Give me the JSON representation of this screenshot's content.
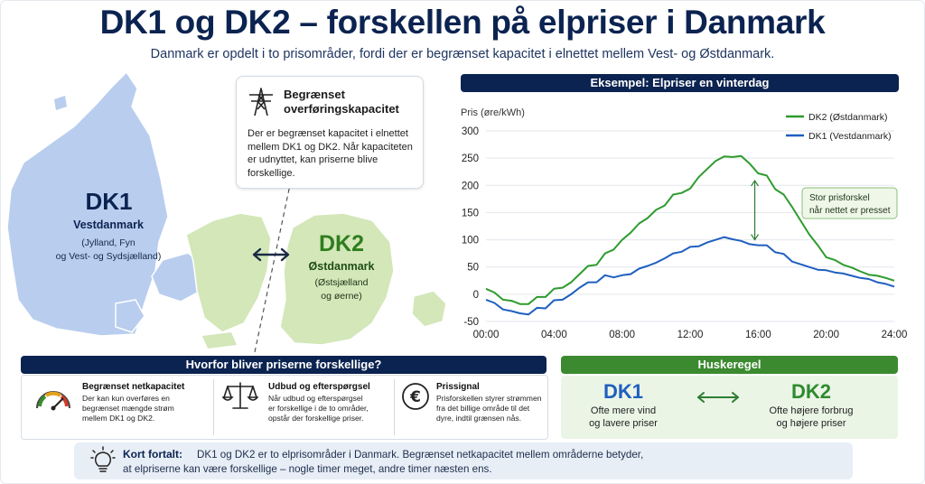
{
  "header": {
    "title": "DK1 og DK2 – forskellen på elpriser i Danmark",
    "subtitle": "Danmark er opdelt i to prisområder, fordi der er begrænset kapacitet i elnettet mellem Vest- og Østdanmark."
  },
  "callout": {
    "title": "Begrænset overføringskapacitet",
    "text": "Der er begrænset kapacitet i elnettet mellem DK1 og DK2. Når kapaciteten er udnyttet, kan priserne blive forskellige.",
    "icon": "power-pylon-icon"
  },
  "map": {
    "dk1": {
      "name": "DK1",
      "region": "Vestdanmark",
      "desc_line1": "(Jylland, Fyn",
      "desc_line2": "og Vest- og Sydsjælland)",
      "color": "#b9cdee"
    },
    "dk2": {
      "name": "DK2",
      "region": "Østdanmark",
      "desc_line1": "(Østsjælland",
      "desc_line2": "og øerne)",
      "color": "#d3e7b9"
    }
  },
  "chart_header": "Eksempel: Elpriser en vinterdag",
  "chart_data": {
    "type": "line",
    "ylabel": "Pris (øre/kWh)",
    "ylim": [
      -50,
      300
    ],
    "yticks": [
      300,
      250,
      200,
      150,
      100,
      50,
      0,
      -50
    ],
    "xticks": [
      "00:00",
      "04:00",
      "08:00",
      "12:00",
      "16:00",
      "20:00",
      "24:00"
    ],
    "x": [
      0,
      0.5,
      1,
      1.5,
      2,
      2.5,
      3,
      3.5,
      4,
      4.5,
      5,
      5.5,
      6,
      6.5,
      7,
      7.5,
      8,
      8.5,
      9,
      9.5,
      10,
      10.5,
      11,
      11.5,
      12,
      12.5,
      13,
      13.5,
      14,
      14.5,
      15,
      15.5,
      16,
      16.5,
      17,
      17.5,
      18,
      18.5,
      19,
      19.5,
      20,
      20.5,
      21,
      21.5,
      22,
      22.5,
      23,
      23.5,
      24
    ],
    "series": [
      {
        "name": "DK2 (Østdanmark)",
        "color": "#2e9b2e",
        "values": [
          10,
          3,
          -10,
          -12,
          -18,
          -18,
          -5,
          -5,
          10,
          12,
          22,
          37,
          52,
          54,
          75,
          82,
          100,
          113,
          130,
          140,
          155,
          163,
          183,
          186,
          194,
          215,
          230,
          245,
          253,
          252,
          254,
          240,
          222,
          218,
          193,
          183,
          160,
          135,
          110,
          90,
          68,
          63,
          54,
          49,
          42,
          36,
          34,
          30,
          25
        ]
      },
      {
        "name": "DK1 (Vestdanmark)",
        "color": "#1f5fbf",
        "values": [
          -10,
          -16,
          -28,
          -31,
          -35,
          -37,
          -25,
          -26,
          -11,
          -10,
          0,
          12,
          22,
          22,
          35,
          31,
          35,
          37,
          47,
          52,
          58,
          66,
          75,
          78,
          87,
          88,
          95,
          100,
          105,
          101,
          98,
          92,
          90,
          90,
          77,
          74,
          60,
          55,
          50,
          45,
          44,
          40,
          38,
          34,
          30,
          28,
          22,
          19,
          14
        ]
      }
    ],
    "annotation": {
      "line1": "Stor prisforskel",
      "line2": "når nettet er presset"
    }
  },
  "why": {
    "header": "Hvorfor bliver priserne forskellige?",
    "items": [
      {
        "icon": "gauge-icon",
        "title": "Begrænset netkapacitet",
        "lines": [
          "Der kan kun overføres en",
          "begrænset mængde strøm",
          "mellem DK1 og DK2."
        ]
      },
      {
        "icon": "scales-icon",
        "title": "Udbud og efterspørgsel",
        "lines": [
          "Når udbud og efterspørgsel",
          "er forskellige i de to områder,",
          "opstår der forskellige priser."
        ]
      },
      {
        "icon": "euro-icon",
        "symbol": "€",
        "title": "Prissignal",
        "lines": [
          "Prisforskellen styrer strømmen",
          "fra det billige område til det",
          "dyre, indtil grænsen nås."
        ]
      }
    ]
  },
  "huskeregel": {
    "header": "Huskeregel",
    "dk1": {
      "name": "DK1",
      "line1": "Ofte mere vind",
      "line2": "og lavere priser",
      "color": "#1f5fbf"
    },
    "dk2": {
      "name": "DK2",
      "line1": "Ofte højere forbrug",
      "line2": "og højere priser",
      "color": "#2e8b2e"
    }
  },
  "summary": {
    "label": "Kort fortalt:",
    "line1": "DK1 og DK2 er to elprisområder i Danmark. Begrænset netkapacitet mellem områderne betyder,",
    "line2": "at elpriserne kan være forskellige – nogle timer meget, andre timer næsten ens.",
    "icon": "lightbulb-icon"
  },
  "colors": {
    "navy": "#0b2350",
    "green_header": "#3b8a2f",
    "dk1_fill": "#b9cdee",
    "dk2_fill": "#d3e7b9"
  }
}
